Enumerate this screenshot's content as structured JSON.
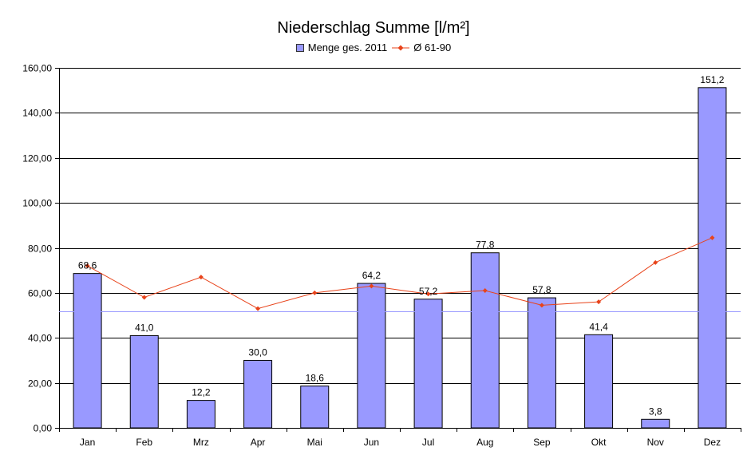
{
  "chart_data": {
    "type": "bar",
    "title": "Niederschlag Summe [l/m²]",
    "categories": [
      "Jan",
      "Feb",
      "Mrz",
      "Apr",
      "Mai",
      "Jun",
      "Jul",
      "Aug",
      "Sep",
      "Okt",
      "Nov",
      "Dez"
    ],
    "series": [
      {
        "name": "Menge ges. 2011",
        "kind": "bar",
        "color": "#9999ff",
        "values": [
          68.6,
          41.0,
          12.2,
          30.0,
          18.6,
          64.2,
          57.2,
          77.8,
          57.8,
          41.4,
          3.8,
          151.2
        ],
        "labels": [
          "68,6",
          "41,0",
          "12,2",
          "30,0",
          "18,6",
          "64,2",
          "57,2",
          "77,8",
          "57,8",
          "41,4",
          "3,8",
          "151,2"
        ]
      },
      {
        "name": "Ø 61-90",
        "kind": "line",
        "color": "#e8431a",
        "values": [
          72,
          58,
          67,
          53,
          60,
          63,
          59.5,
          61,
          54.5,
          56,
          73.5,
          84.5
        ]
      }
    ],
    "reference_line": {
      "value": 51.9,
      "color": "#9999ff"
    },
    "yticks": [
      "0,00",
      "20,00",
      "40,00",
      "60,00",
      "80,00",
      "100,00",
      "120,00",
      "140,00",
      "160,00"
    ],
    "ylim": [
      0,
      160
    ],
    "grid": true,
    "legend_position": "top"
  }
}
